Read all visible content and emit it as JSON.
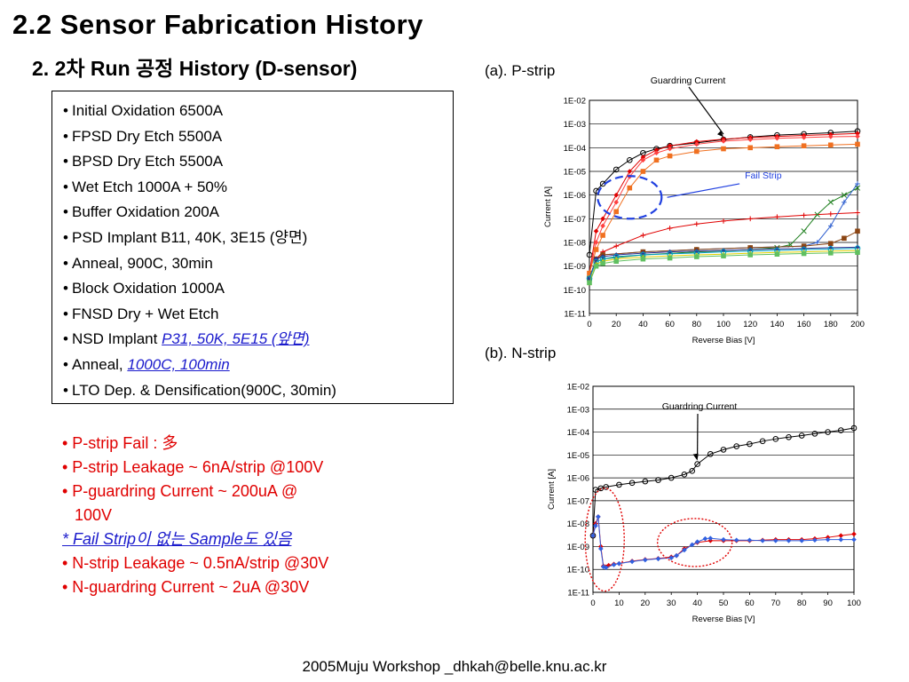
{
  "slide": {
    "title": "2.2 Sensor Fabrication History",
    "subtitle": "2. 2차 Run 공정 History (D-sensor)",
    "footer": "2005Muju Workshop _dhkah@belle.knu.ac.kr"
  },
  "process_steps": [
    {
      "text": "Initial Oxidation 6500A",
      "highlight": ""
    },
    {
      "text": "FPSD Dry Etch 5500A",
      "highlight": ""
    },
    {
      "text": "BPSD Dry Etch 5500A",
      "highlight": ""
    },
    {
      "text": "Wet Etch 1000A + 50%",
      "highlight": ""
    },
    {
      "text": "Buffer Oxidation 200A",
      "highlight": ""
    },
    {
      "text": "PSD Implant B11, 40K, 3E15 (양면)",
      "highlight": ""
    },
    {
      "text": "Anneal, 900C, 30min",
      "highlight": ""
    },
    {
      "text": "Block Oxidation 1000A",
      "highlight": ""
    },
    {
      "text": "FNSD Dry + Wet Etch",
      "highlight": ""
    },
    {
      "text": "NSD Implant ",
      "highlight": "P31, 50K, 5E15 (앞면)"
    },
    {
      "text": "Anneal, ",
      "highlight": "1000C, 100min"
    },
    {
      "text": "LTO Dep. & Densification(900C, 30min)",
      "highlight": ""
    }
  ],
  "notes": {
    "p_fail": "• P-strip Fail : 多",
    "p_leak": "• P-strip Leakage ~ 6nA/strip @100V",
    "p_guard_1": "• P-guardring Current ~ 200uA @",
    "p_guard_2": "100V",
    "fail_free": "* Fail Strip이 없는 Sample도 있음",
    "n_leak": "• N-strip Leakage ~ 0.5nA/strip @30V",
    "n_guard": "• N-guardring Current ~ 2uA @30V"
  },
  "chart_data": [
    {
      "type": "scatter",
      "panel_label": "(a). P-strip",
      "xlabel": "Reverse Bias [V]",
      "ylabel": "Current [A]",
      "yscale": "log",
      "xlim": [
        0,
        200
      ],
      "ylim": [
        1e-11,
        0.01
      ],
      "x_ticks": [
        0,
        20,
        40,
        60,
        80,
        100,
        120,
        140,
        160,
        180,
        200
      ],
      "y_tick_labels": [
        "1E-02",
        "1E-03",
        "1E-04",
        "1E-05",
        "1E-06",
        "1E-07",
        "1E-08",
        "1E-09",
        "1E-10",
        "1E-11"
      ],
      "grid": "horizontal",
      "annotations": {
        "guard": "Guardring Current",
        "fail": "Fail Strip"
      },
      "series": [
        {
          "role": "guardring",
          "color": "#000000",
          "marker": "circle",
          "x": [
            0,
            5,
            10,
            20,
            30,
            40,
            50,
            60,
            80,
            100,
            120,
            140,
            160,
            180,
            200
          ],
          "y": [
            3e-09,
            1.5e-06,
            3e-06,
            1.2e-05,
            3e-05,
            6e-05,
            9e-05,
            0.00012,
            0.00016,
            0.00022,
            0.00028,
            0.00034,
            0.00038,
            0.00043,
            0.0005
          ]
        },
        {
          "role": "fail-strip",
          "color": "#e00000",
          "marker": "diamond",
          "x": [
            0,
            5,
            10,
            20,
            30,
            40,
            50,
            60,
            80,
            100,
            120,
            140,
            160,
            180,
            200
          ],
          "y": [
            5e-10,
            3e-08,
            1e-07,
            1e-06,
            1e-05,
            4e-05,
            8e-05,
            0.00012,
            0.00018,
            0.00023,
            0.00027,
            0.0003,
            0.00033,
            0.00036,
            0.0004
          ]
        },
        {
          "role": "fail-strip",
          "color": "#ff4040",
          "marker": "diamond",
          "x": [
            0,
            5,
            10,
            20,
            30,
            40,
            50,
            60,
            80,
            100,
            120,
            140,
            160,
            180,
            200
          ],
          "y": [
            5e-10,
            1e-08,
            5e-08,
            5e-07,
            6e-06,
            3e-05,
            6e-05,
            9e-05,
            0.00014,
            0.00019,
            0.00022,
            0.00025,
            0.00027,
            0.00029,
            0.0003
          ]
        },
        {
          "role": "fail-strip",
          "color": "#f07020",
          "marker": "square",
          "x": [
            0,
            5,
            10,
            20,
            30,
            40,
            50,
            60,
            80,
            100,
            120,
            140,
            160,
            180,
            200
          ],
          "y": [
            5e-10,
            5e-09,
            2e-08,
            2e-07,
            2e-06,
            1e-05,
            3e-05,
            4.5e-05,
            7e-05,
            9e-05,
            0.0001,
            0.00011,
            0.00012,
            0.00013,
            0.00014
          ]
        },
        {
          "role": "strip",
          "color": "#e00000",
          "marker": "plus",
          "x": [
            0,
            5,
            10,
            20,
            40,
            60,
            80,
            100,
            120,
            140,
            160,
            180,
            200
          ],
          "y": [
            3e-10,
            2e-09,
            4e-09,
            7e-09,
            2e-08,
            4e-08,
            6e-08,
            8e-08,
            1e-07,
            1.2e-07,
            1.4e-07,
            1.6e-07,
            1.8e-07
          ]
        },
        {
          "role": "strip",
          "color": "#208020",
          "marker": "x",
          "x": [
            0,
            5,
            10,
            40,
            80,
            120,
            140,
            150,
            160,
            170,
            180,
            190,
            200
          ],
          "y": [
            3e-10,
            1.5e-09,
            2e-09,
            3e-09,
            4e-09,
            5e-09,
            6e-09,
            8e-09,
            3e-08,
            1.5e-07,
            5e-07,
            1e-06,
            2e-06
          ]
        },
        {
          "role": "strip",
          "color": "#3060d0",
          "marker": "plus",
          "x": [
            0,
            5,
            10,
            40,
            80,
            120,
            160,
            170,
            180,
            190,
            200
          ],
          "y": [
            3e-10,
            2e-09,
            3e-09,
            4e-09,
            5e-09,
            6e-09,
            7e-09,
            1e-08,
            5e-08,
            5e-07,
            3e-06
          ]
        },
        {
          "role": "strip",
          "color": "#8b4513",
          "marker": "square",
          "x": [
            0,
            5,
            10,
            40,
            80,
            120,
            160,
            180,
            190,
            200
          ],
          "y": [
            3e-10,
            2e-09,
            3e-09,
            4e-09,
            5e-09,
            6e-09,
            7e-09,
            9e-09,
            1.5e-08,
            3e-08
          ]
        },
        {
          "role": "strip",
          "color": "#303090",
          "marker": "diamond",
          "x": [
            0,
            5,
            10,
            20,
            40,
            60,
            80,
            100,
            120,
            140,
            160,
            180,
            200
          ],
          "y": [
            3e-10,
            2e-09,
            2.5e-09,
            3e-09,
            3.5e-09,
            4e-09,
            4.3e-09,
            4.6e-09,
            5e-09,
            5.3e-09,
            5.6e-09,
            6e-09,
            6.3e-09
          ]
        },
        {
          "role": "strip",
          "color": "#00a0c0",
          "marker": "circle",
          "x": [
            0,
            5,
            10,
            20,
            40,
            60,
            80,
            100,
            120,
            140,
            160,
            180,
            200
          ],
          "y": [
            3e-10,
            1.5e-09,
            2e-09,
            2.5e-09,
            3e-09,
            3.3e-09,
            3.6e-09,
            4e-09,
            4.3e-09,
            4.6e-09,
            5e-09,
            5.3e-09,
            5.6e-09
          ]
        },
        {
          "role": "strip",
          "color": "#e0d000",
          "marker": "triangle",
          "x": [
            0,
            5,
            10,
            20,
            40,
            60,
            80,
            100,
            120,
            140,
            160,
            180,
            200
          ],
          "y": [
            2e-10,
            1.2e-09,
            1.6e-09,
            2e-09,
            2.4e-09,
            2.7e-09,
            3e-09,
            3.2e-09,
            3.5e-09,
            3.8e-09,
            4e-09,
            4.3e-09,
            4.5e-09
          ]
        },
        {
          "role": "strip",
          "color": "#60c060",
          "marker": "square",
          "x": [
            0,
            5,
            10,
            20,
            40,
            60,
            80,
            100,
            120,
            140,
            160,
            180,
            200
          ],
          "y": [
            2e-10,
            1e-09,
            1.3e-09,
            1.6e-09,
            2e-09,
            2.2e-09,
            2.5e-09,
            2.7e-09,
            3e-09,
            3.2e-09,
            3.4e-09,
            3.6e-09,
            3.8e-09
          ]
        }
      ]
    },
    {
      "type": "scatter",
      "panel_label": "(b). N-strip",
      "xlabel": "Reverse Bias [V]",
      "ylabel": "Current [A]",
      "yscale": "log",
      "xlim": [
        0,
        100
      ],
      "ylim": [
        1e-11,
        0.01
      ],
      "x_ticks": [
        0,
        10,
        20,
        30,
        40,
        50,
        60,
        70,
        80,
        90,
        100
      ],
      "y_tick_labels": [
        "1E-02",
        "1E-03",
        "1E-04",
        "1E-05",
        "1E-06",
        "1E-07",
        "1E-08",
        "1E-09",
        "1E-10",
        "1E-11"
      ],
      "grid": "horizontal",
      "annotations": {
        "guard": "Guardring Current"
      },
      "series": [
        {
          "role": "guardring",
          "color": "#000000",
          "marker": "circle",
          "x": [
            0,
            1,
            3,
            5,
            10,
            15,
            20,
            25,
            30,
            35,
            38,
            40,
            45,
            50,
            55,
            60,
            65,
            70,
            75,
            80,
            85,
            90,
            95,
            100
          ],
          "y": [
            3e-09,
            3e-07,
            3.5e-07,
            4e-07,
            5e-07,
            6e-07,
            7e-07,
            8e-07,
            1e-06,
            1.4e-06,
            2e-06,
            4e-06,
            1.1e-05,
            1.7e-05,
            2.4e-05,
            3e-05,
            4e-05,
            5e-05,
            6e-05,
            7e-05,
            8.5e-05,
            0.0001,
            0.00012,
            0.00015
          ]
        },
        {
          "role": "strip",
          "color": "#e00000",
          "marker": "diamond",
          "x": [
            0,
            1,
            2,
            3,
            4,
            5,
            6,
            8,
            10,
            15,
            20,
            25,
            30,
            32,
            35,
            40,
            45,
            50,
            55,
            60,
            65,
            70,
            75,
            80,
            85,
            90,
            95,
            100
          ],
          "y": [
            3e-09,
            1e-08,
            2e-08,
            1e-09,
            1.4e-10,
            1.3e-10,
            1.5e-10,
            1.7e-10,
            1.8e-10,
            2.3e-10,
            2.7e-10,
            3e-10,
            3.5e-10,
            4e-10,
            8e-10,
            1.5e-09,
            1.8e-09,
            1.8e-09,
            1.8e-09,
            1.8e-09,
            1.9e-09,
            2e-09,
            2e-09,
            2e-09,
            2.2e-09,
            2.5e-09,
            3e-09,
            3.5e-09
          ]
        },
        {
          "role": "strip",
          "color": "#3060e0",
          "marker": "diamond",
          "x": [
            0,
            1,
            2,
            3,
            4,
            5,
            8,
            10,
            15,
            20,
            25,
            30,
            32,
            35,
            38,
            40,
            43,
            45,
            50,
            55,
            60,
            65,
            70,
            75,
            80,
            85,
            90,
            95,
            100
          ],
          "y": [
            3e-09,
            8e-09,
            2e-08,
            8e-10,
            1.3e-10,
            1.2e-10,
            1.6e-10,
            1.8e-10,
            2.2e-10,
            2.6e-10,
            2.9e-10,
            3.2e-10,
            4e-10,
            7e-10,
            1.2e-09,
            1.6e-09,
            2.2e-09,
            2.3e-09,
            2e-09,
            1.9e-09,
            1.9e-09,
            1.8e-09,
            1.8e-09,
            1.8e-09,
            1.8e-09,
            1.9e-09,
            2e-09,
            2e-09,
            2e-09
          ]
        }
      ]
    }
  ]
}
